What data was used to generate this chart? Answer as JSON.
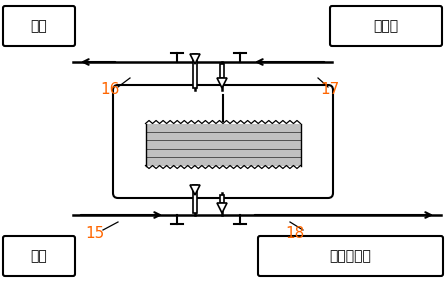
{
  "bg_color": "#ffffff",
  "text_color": "#000000",
  "labels": {
    "top_left": "廢液",
    "top_right": "洗脱液",
    "bot_left": "原液",
    "bot_right": "高濃度鎈液"
  },
  "numbers": {
    "n16": "16",
    "n17": "17",
    "n15": "15",
    "n18": "18"
  },
  "num_color": "#ff6600",
  "fig_width": 4.46,
  "fig_height": 2.83,
  "dpi": 100
}
